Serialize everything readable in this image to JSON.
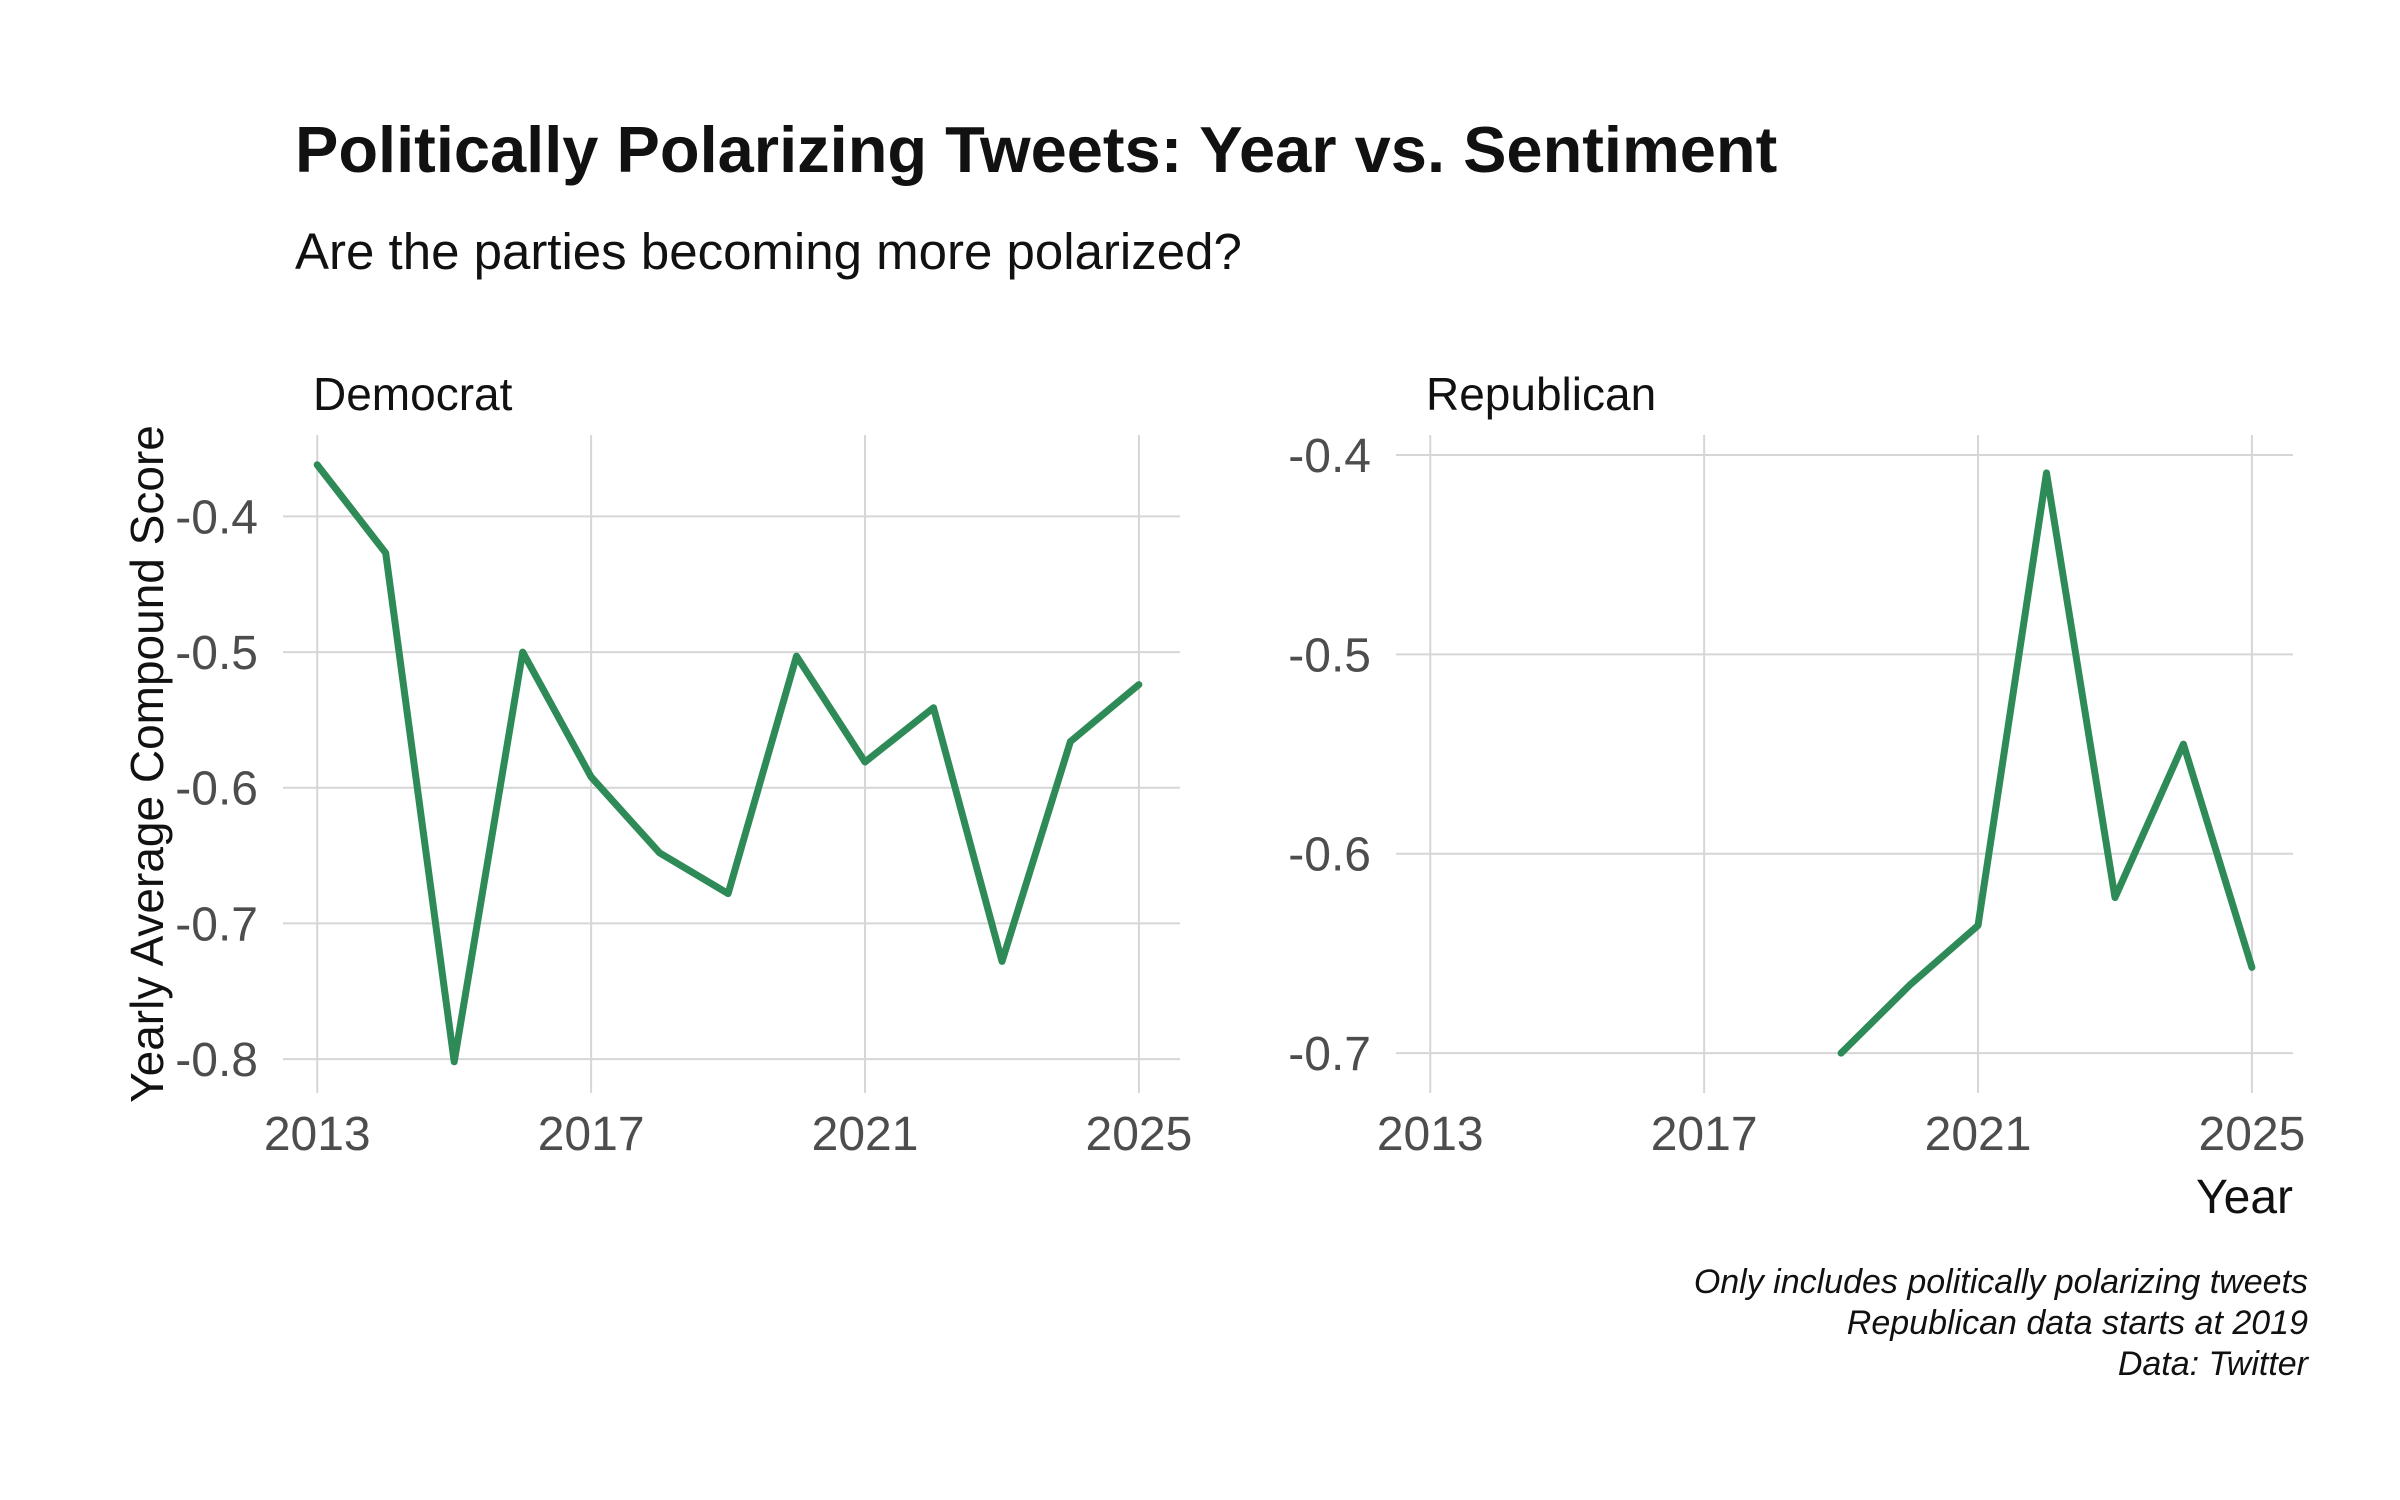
{
  "title": "Politically Polarizing Tweets: Year vs. Sentiment",
  "subtitle": "Are the parties becoming more polarized?",
  "caption": [
    "Only includes politically polarizing tweets",
    "Republican data starts at 2019",
    "Data: Twitter"
  ],
  "colors": {
    "line": "#2e8b57",
    "grid": "#d6d6d6",
    "tick_text": "#4d4d4d",
    "text": "#111111"
  },
  "chart_data": [
    {
      "type": "line",
      "facet": "Democrat",
      "xlabel": "",
      "ylabel": "Yearly Average Compound Score",
      "xticks": [
        2013,
        2017,
        2021,
        2025
      ],
      "xtick_labels": [
        "2013",
        "2017",
        "2021",
        "2025"
      ],
      "yticks": [
        -0.4,
        -0.5,
        -0.6,
        -0.7,
        -0.8
      ],
      "ytick_labels": [
        "-0.4",
        "-0.5",
        "-0.6",
        "-0.7",
        "-0.8"
      ],
      "xlim": [
        2012.5,
        2025.6
      ],
      "ylim": [
        -0.825,
        -0.34
      ],
      "grid": true,
      "series": [
        {
          "x": [
            2013,
            2014,
            2015,
            2016,
            2017,
            2018,
            2019,
            2020,
            2021,
            2022,
            2023,
            2024,
            2025
          ],
          "y": [
            -0.362,
            -0.427,
            -0.802,
            -0.5,
            -0.592,
            -0.648,
            -0.678,
            -0.503,
            -0.581,
            -0.541,
            -0.728,
            -0.566,
            -0.524
          ]
        }
      ]
    },
    {
      "type": "line",
      "facet": "Republican",
      "xlabel": "Year",
      "ylabel": "",
      "xticks": [
        2013,
        2017,
        2021,
        2025
      ],
      "xtick_labels": [
        "2013",
        "2017",
        "2021",
        "2025"
      ],
      "yticks": [
        -0.4,
        -0.5,
        -0.6,
        -0.7
      ],
      "ytick_labels": [
        "-0.4",
        "-0.5",
        "-0.6",
        "-0.7"
      ],
      "xlim": [
        2012.5,
        2025.6
      ],
      "ylim": [
        -0.72,
        -0.39
      ],
      "grid": true,
      "series": [
        {
          "x": [
            2019,
            2020,
            2021,
            2022,
            2023,
            2024,
            2025
          ],
          "y": [
            -0.7,
            -0.666,
            -0.636,
            -0.409,
            -0.622,
            -0.545,
            -0.657
          ]
        }
      ]
    }
  ]
}
